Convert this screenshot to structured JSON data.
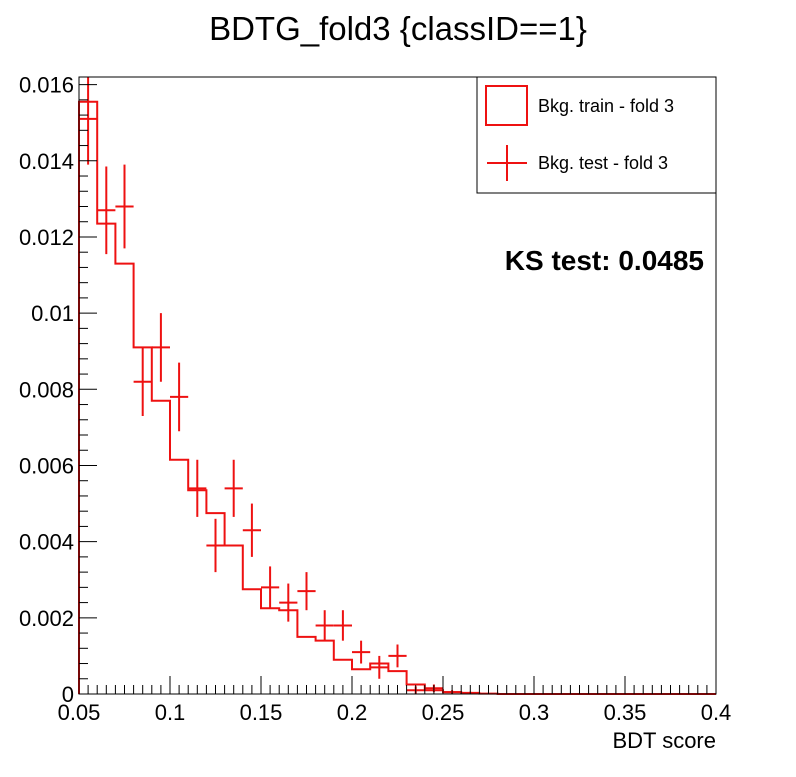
{
  "chart_data": {
    "type": "histogram",
    "title": "BDTG_fold3 {classID==1}",
    "xlabel": "BDT score",
    "ylabel": "",
    "xlim": [
      0.05,
      0.4
    ],
    "ylim": [
      0,
      0.0162
    ],
    "x_ticks": [
      {
        "value": 0.05,
        "label": "0.05"
      },
      {
        "value": 0.1,
        "label": "0.1"
      },
      {
        "value": 0.15,
        "label": "0.15"
      },
      {
        "value": 0.2,
        "label": "0.2"
      },
      {
        "value": 0.25,
        "label": "0.25"
      },
      {
        "value": 0.3,
        "label": "0.3"
      },
      {
        "value": 0.35,
        "label": "0.35"
      },
      {
        "value": 0.4,
        "label": "0.4"
      }
    ],
    "y_ticks": [
      {
        "value": 0,
        "label": "0"
      },
      {
        "value": 0.002,
        "label": "0.002"
      },
      {
        "value": 0.004,
        "label": "0.004"
      },
      {
        "value": 0.006,
        "label": "0.006"
      },
      {
        "value": 0.008,
        "label": "0.008"
      },
      {
        "value": 0.01,
        "label": "0.01"
      },
      {
        "value": 0.012,
        "label": "0.012"
      },
      {
        "value": 0.014,
        "label": "0.014"
      },
      {
        "value": 0.016,
        "label": "0.016"
      }
    ],
    "bin_edges": [
      0.05,
      0.06,
      0.07,
      0.08,
      0.09,
      0.1,
      0.11,
      0.12,
      0.13,
      0.14,
      0.15,
      0.16,
      0.17,
      0.18,
      0.19,
      0.2,
      0.21,
      0.22,
      0.23,
      0.24,
      0.25,
      0.26,
      0.27,
      0.28,
      0.29,
      0.3,
      0.31,
      0.32,
      0.33,
      0.34,
      0.35,
      0.36,
      0.37,
      0.38,
      0.39,
      0.4
    ],
    "series": [
      {
        "name": "Bkg. train - fold 3",
        "style": "step",
        "color": "#ee1111",
        "values": [
          0.01555,
          0.01235,
          0.0113,
          0.0091,
          0.0077,
          0.00615,
          0.00535,
          0.00475,
          0.0039,
          0.00275,
          0.00225,
          0.0022,
          0.0015,
          0.0014,
          0.0009,
          0.00065,
          0.0008,
          0.0006,
          0.00025,
          0.0001,
          5e-05,
          2e-05,
          1e-05,
          0,
          0,
          0,
          0,
          0,
          0,
          0,
          0,
          0,
          0,
          0,
          0
        ]
      },
      {
        "name": "Bkg. test - fold 3",
        "style": "errorbar",
        "color": "#ee1111",
        "values": [
          0.0151,
          0.0127,
          0.0128,
          0.0082,
          0.0091,
          0.0078,
          0.0054,
          0.0039,
          0.0054,
          0.0043,
          0.0028,
          0.0024,
          0.0027,
          0.0018,
          0.0018,
          0.0011,
          0.0007,
          0.001,
          0.0001,
          0.00015,
          5e-05,
          3e-05,
          0,
          0,
          0,
          0,
          0,
          0,
          0,
          0,
          0,
          0,
          0,
          0,
          0
        ],
        "errors": [
          0.0012,
          0.00115,
          0.0011,
          0.0009,
          0.0009,
          0.0009,
          0.00075,
          0.0007,
          0.00075,
          0.0007,
          0.00055,
          0.0005,
          0.0005,
          0.0004,
          0.0004,
          0.0003,
          0.0003,
          0.0003,
          0.0001,
          0.0001,
          5e-05,
          3e-05,
          0,
          0,
          0,
          0,
          0,
          0,
          0,
          0,
          0,
          0,
          0,
          0,
          0
        ]
      }
    ],
    "legend": {
      "position": "top-right",
      "entries": [
        {
          "label": "Bkg. train - fold 3",
          "marker": "box"
        },
        {
          "label": "Bkg. test - fold 3",
          "marker": "errorbar"
        }
      ]
    },
    "annotations": [
      {
        "text": "KS test: 0.0485"
      }
    ],
    "grid": false
  }
}
